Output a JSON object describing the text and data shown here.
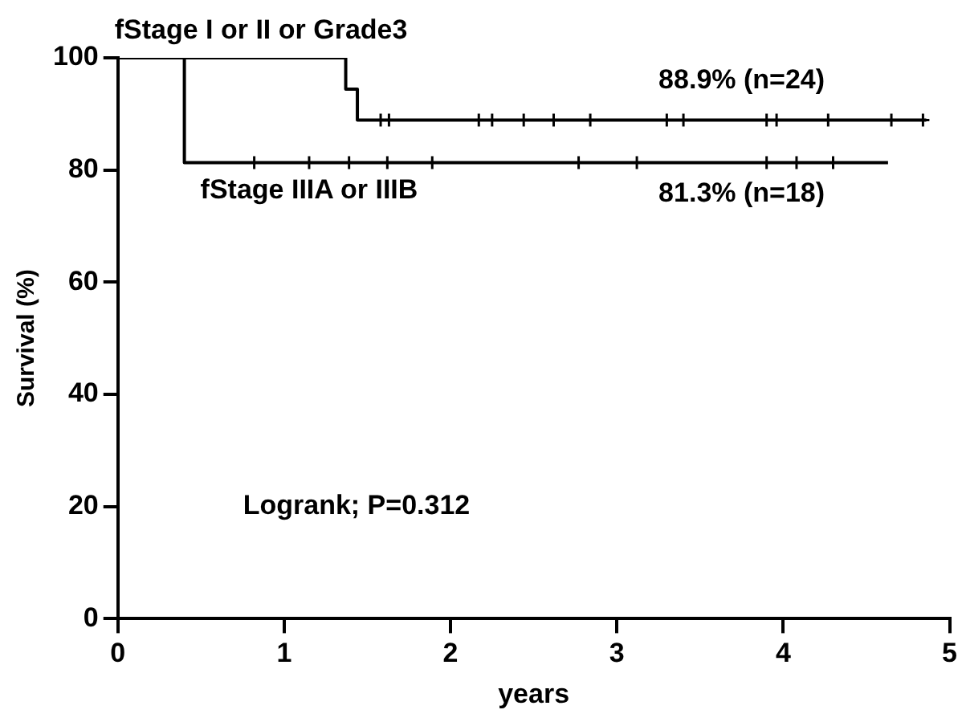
{
  "chart_data": {
    "type": "step",
    "xlabel": "years",
    "ylabel": "Survival (%)",
    "xlim": [
      0,
      5
    ],
    "xticks": [
      0,
      1,
      2,
      3,
      4,
      5
    ],
    "ylim": [
      0,
      100
    ],
    "yticks": [
      0,
      20,
      40,
      60,
      80,
      100
    ],
    "grid": false,
    "legend": false,
    "series": [
      {
        "name": "fStage I or II or Grade3",
        "color": "#000000",
        "x": [
          0,
          1.37,
          1.44,
          4.86
        ],
        "values": [
          100,
          94.4,
          88.9,
          88.9
        ]
      },
      {
        "name": "fStage IIIA or IIIB",
        "color": "#000000",
        "x": [
          0,
          0.4,
          4.63
        ],
        "values": [
          100,
          81.3,
          81.3
        ]
      },
      {
        "type": "scatter",
        "color": "#000000",
        "marker": "cross",
        "x": [
          1.58,
          1.63,
          2.17,
          2.25,
          2.44,
          2.62,
          2.84,
          3.3,
          3.4,
          3.9,
          3.96,
          4.27,
          4.65,
          4.84
        ],
        "values": [
          88.9,
          88.9,
          88.9,
          88.9,
          88.9,
          88.9,
          88.9,
          88.9,
          88.9,
          88.9,
          88.9,
          88.9,
          88.9,
          88.9
        ]
      },
      {
        "type": "scatter",
        "color": "#000000",
        "marker": "cross",
        "x": [
          0.82,
          1.15,
          1.39,
          1.62,
          1.89,
          2.77,
          3.12,
          3.9,
          4.08,
          4.3
        ],
        "values": [
          81.3,
          81.3,
          81.3,
          81.3,
          81.3,
          81.3,
          81.3,
          81.3,
          81.3,
          81.3
        ]
      }
    ],
    "annotations": [
      {
        "text": "88.9% (n=24)",
        "x": 3.75,
        "y": 88.9
      },
      {
        "text": "81.3% (n=18)",
        "x": 3.75,
        "y": 81.3
      },
      "Logrank; P=0.312"
    ]
  }
}
